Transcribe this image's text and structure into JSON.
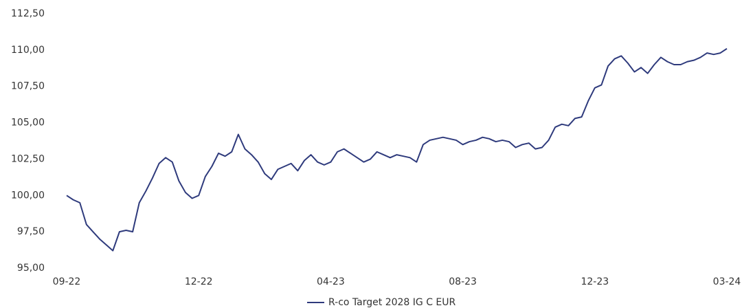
{
  "chart_data": {
    "type": "line",
    "categories": [
      "09-22",
      null,
      null,
      null,
      null,
      null,
      null,
      null,
      null,
      null,
      null,
      null,
      null,
      null,
      null,
      null,
      null,
      null,
      null,
      null,
      "12-22",
      null,
      null,
      null,
      null,
      null,
      null,
      null,
      null,
      null,
      null,
      null,
      null,
      null,
      null,
      null,
      null,
      null,
      null,
      null,
      "04-23",
      null,
      null,
      null,
      null,
      null,
      null,
      null,
      null,
      null,
      null,
      null,
      null,
      null,
      null,
      null,
      null,
      null,
      null,
      null,
      "08-23",
      null,
      null,
      null,
      null,
      null,
      null,
      null,
      null,
      null,
      null,
      null,
      null,
      null,
      null,
      null,
      null,
      null,
      null,
      null,
      "12-23",
      null,
      null,
      null,
      null,
      null,
      null,
      null,
      null,
      null,
      null,
      null,
      null,
      null,
      null,
      null,
      null,
      null,
      null,
      null,
      "03-24"
    ],
    "series": [
      {
        "name": "R-co Target 2028 IG C EUR",
        "color": "#2e3a7c",
        "values": [
          100.0,
          99.7,
          99.5,
          98.0,
          97.5,
          97.0,
          96.6,
          96.2,
          97.5,
          97.6,
          97.5,
          99.5,
          100.3,
          101.2,
          102.2,
          102.6,
          102.3,
          101.0,
          100.2,
          99.8,
          100.0,
          101.3,
          102.0,
          102.9,
          102.7,
          103.0,
          104.2,
          103.2,
          102.8,
          102.3,
          101.5,
          101.1,
          101.8,
          102.0,
          102.2,
          101.7,
          102.4,
          102.8,
          102.3,
          102.1,
          102.3,
          103.0,
          103.2,
          102.9,
          102.6,
          102.3,
          102.5,
          103.0,
          102.8,
          102.6,
          102.8,
          102.7,
          102.6,
          102.3,
          103.5,
          103.8,
          103.9,
          104.0,
          103.9,
          103.8,
          103.5,
          103.7,
          103.8,
          104.0,
          103.9,
          103.7,
          103.8,
          103.7,
          103.3,
          103.5,
          103.6,
          103.2,
          103.3,
          103.8,
          104.7,
          104.9,
          104.8,
          105.3,
          105.4,
          106.5,
          107.4,
          107.6,
          108.9,
          109.4,
          109.6,
          109.1,
          108.5,
          108.8,
          108.4,
          109.0,
          109.5,
          109.2,
          109.0,
          109.0,
          109.2,
          109.3,
          109.5,
          109.8,
          109.7,
          109.8,
          110.1
        ]
      }
    ],
    "ylim": [
      95,
      112.5
    ],
    "yticks": [
      {
        "value": 95,
        "label": "95,00"
      },
      {
        "value": 97.5,
        "label": "97,50"
      },
      {
        "value": 100,
        "label": "100,00"
      },
      {
        "value": 102.5,
        "label": "102,50"
      },
      {
        "value": 105,
        "label": "105,00"
      },
      {
        "value": 107.5,
        "label": "107,50"
      },
      {
        "value": 110,
        "label": "110,00"
      },
      {
        "value": 112.5,
        "label": "112,50"
      }
    ],
    "grid": false,
    "legend": "bottom"
  }
}
